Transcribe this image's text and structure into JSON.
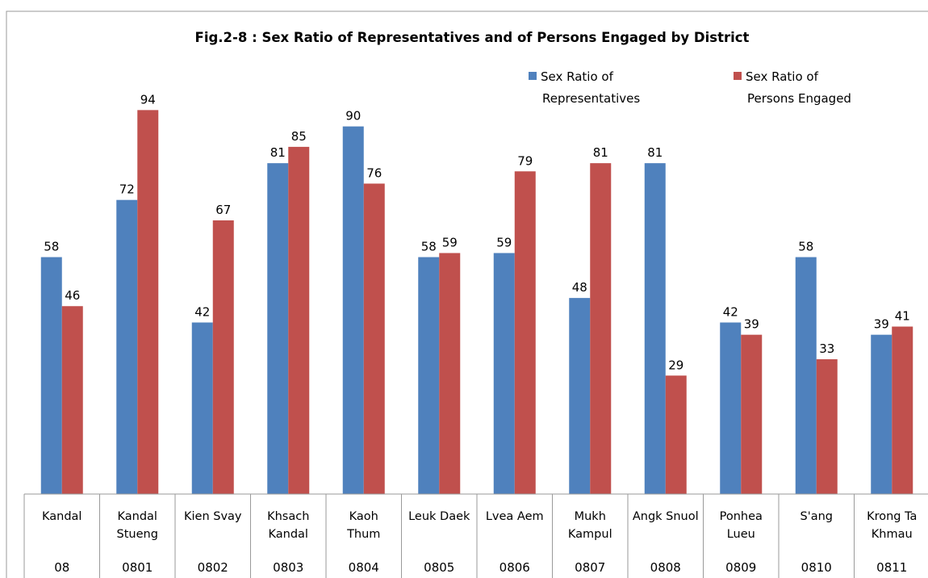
{
  "chart_data": {
    "type": "bar",
    "title": "Fig.2-8 : Sex Ratio of Representatives and of Persons Engaged by District",
    "xlabel": "",
    "ylabel": "",
    "ylim": [
      0,
      100
    ],
    "grid": false,
    "legend_position": "top-right",
    "categories": [
      {
        "name": [
          "Kandal"
        ],
        "code": "08"
      },
      {
        "name": [
          "Kandal",
          "Stueng"
        ],
        "code": "0801"
      },
      {
        "name": [
          "Kien Svay"
        ],
        "code": "0802"
      },
      {
        "name": [
          "Khsach",
          "Kandal"
        ],
        "code": "0803"
      },
      {
        "name": [
          "Kaoh",
          "Thum"
        ],
        "code": "0804"
      },
      {
        "name": [
          "Leuk Daek"
        ],
        "code": "0805"
      },
      {
        "name": [
          "Lvea Aem"
        ],
        "code": "0806"
      },
      {
        "name": [
          "Mukh",
          "Kampul"
        ],
        "code": "0807"
      },
      {
        "name": [
          "Angk Snuol"
        ],
        "code": "0808"
      },
      {
        "name": [
          "Ponhea",
          "Lueu"
        ],
        "code": "0809"
      },
      {
        "name": [
          "S'ang"
        ],
        "code": "0810"
      },
      {
        "name": [
          "Krong Ta",
          "Khmau"
        ],
        "code": "0811"
      }
    ],
    "series": [
      {
        "name": [
          "Sex Ratio of",
          "Representatives"
        ],
        "color": "#4f81bd",
        "values": [
          58,
          72,
          42,
          81,
          90,
          58,
          59,
          48,
          81,
          42,
          58,
          39
        ]
      },
      {
        "name": [
          "Sex Ratio of",
          "Persons Engaged"
        ],
        "color": "#c0504d",
        "values": [
          46,
          94,
          67,
          85,
          76,
          59,
          79,
          81,
          29,
          39,
          33,
          41
        ]
      }
    ]
  }
}
